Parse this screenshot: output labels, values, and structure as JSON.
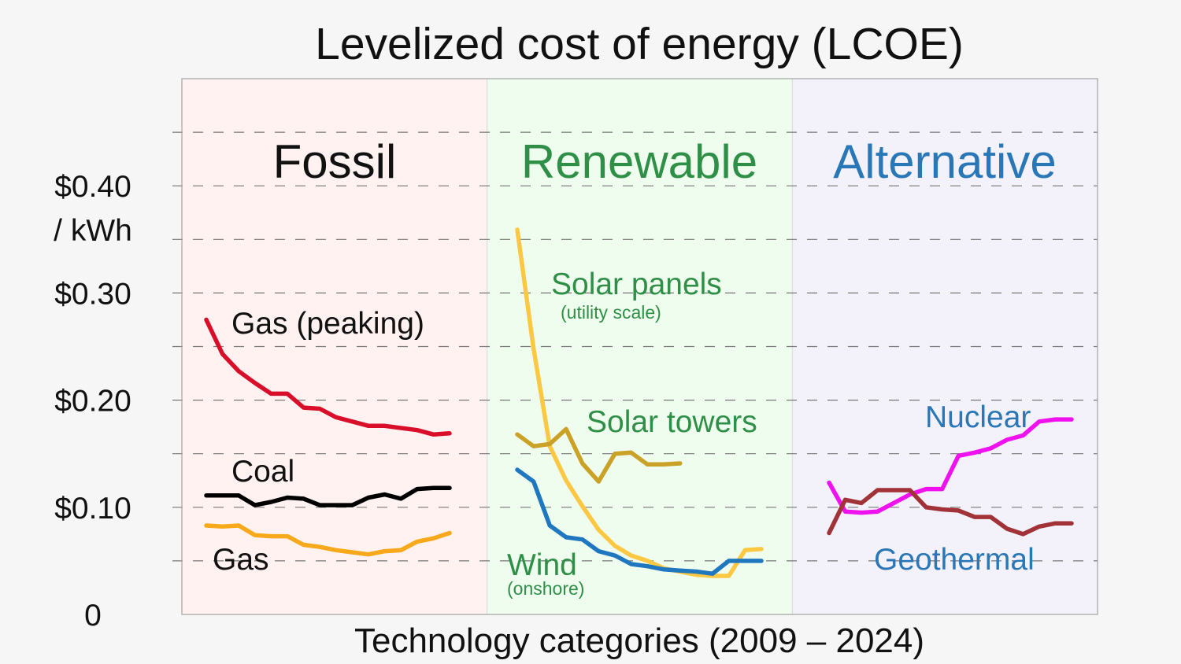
{
  "chart_data": {
    "type": "line",
    "title": "Levelized cost of energy (LCOE)",
    "xlabel": "Technology categories (2009 – 2024)",
    "ylabel": "$0.40 / kWh",
    "ylim": [
      0,
      0.5
    ],
    "y_ticks": [
      {
        "value": 0,
        "label": "0"
      },
      {
        "value": 0.1,
        "label": "$0.10"
      },
      {
        "value": 0.2,
        "label": "$0.20"
      },
      {
        "value": 0.3,
        "label": "$0.30"
      },
      {
        "value": 0.4,
        "label": "$0.40"
      }
    ],
    "y_unit_label": "/ kWh",
    "grid": true,
    "grid_values": [
      0.05,
      0.1,
      0.15,
      0.2,
      0.25,
      0.3,
      0.35,
      0.4,
      0.45
    ],
    "years": [
      2009,
      2010,
      2011,
      2012,
      2013,
      2014,
      2015,
      2016,
      2017,
      2018,
      2019,
      2020,
      2021,
      2022,
      2023,
      2024
    ],
    "categories": [
      {
        "name": "Fossil",
        "color": "#111111",
        "background": "#fff2f1",
        "series": [
          {
            "name": "Gas (peaking)",
            "color": "#d90f2a",
            "x": [
              2009,
              2010,
              2011,
              2012,
              2013,
              2014,
              2015,
              2016,
              2017,
              2018,
              2019,
              2020,
              2021,
              2022,
              2023,
              2024
            ],
            "y": [
              0.275,
              0.243,
              0.227,
              0.216,
              0.206,
              0.206,
              0.193,
              0.192,
              0.184,
              0.18,
              0.176,
              0.176,
              0.174,
              0.172,
              0.168,
              0.169
            ]
          },
          {
            "name": "Coal",
            "color": "#000000",
            "x": [
              2009,
              2010,
              2011,
              2012,
              2013,
              2014,
              2015,
              2016,
              2017,
              2018,
              2019,
              2020,
              2021,
              2022,
              2023,
              2024
            ],
            "y": [
              0.111,
              0.111,
              0.111,
              0.102,
              0.105,
              0.109,
              0.108,
              0.102,
              0.102,
              0.102,
              0.109,
              0.112,
              0.108,
              0.117,
              0.118,
              0.118
            ]
          },
          {
            "name": "Gas",
            "color": "#f7a81b",
            "x": [
              2009,
              2010,
              2011,
              2012,
              2013,
              2014,
              2015,
              2016,
              2017,
              2018,
              2019,
              2020,
              2021,
              2022,
              2023,
              2024
            ],
            "y": [
              0.083,
              0.082,
              0.083,
              0.074,
              0.073,
              0.073,
              0.065,
              0.063,
              0.06,
              0.058,
              0.056,
              0.059,
              0.06,
              0.068,
              0.071,
              0.076
            ]
          }
        ]
      },
      {
        "name": "Renewable",
        "color": "#2f8f47",
        "background": "#effdef",
        "series": [
          {
            "name": "Solar panels",
            "note": "(utility scale)",
            "color": "#fcc843",
            "x": [
              2009,
              2010,
              2011,
              2012,
              2013,
              2014,
              2015,
              2016,
              2017,
              2018,
              2019,
              2020,
              2021,
              2022,
              2023,
              2024
            ],
            "y": [
              0.359,
              0.248,
              0.157,
              0.125,
              0.101,
              0.079,
              0.064,
              0.055,
              0.05,
              0.043,
              0.04,
              0.037,
              0.036,
              0.036,
              0.06,
              0.061
            ]
          },
          {
            "name": "Solar towers",
            "color": "#c9a227",
            "x": [
              2009,
              2010,
              2011,
              2012,
              2013,
              2014,
              2015,
              2016,
              2017,
              2018,
              2019
            ],
            "y": [
              0.168,
              0.157,
              0.159,
              0.173,
              0.141,
              0.124,
              0.15,
              0.151,
              0.14,
              0.14,
              0.141
            ]
          },
          {
            "name": "Wind",
            "note": "(onshore)",
            "color": "#1f77c0",
            "x": [
              2009,
              2010,
              2011,
              2012,
              2013,
              2014,
              2015,
              2016,
              2017,
              2018,
              2019,
              2020,
              2021,
              2022,
              2023,
              2024
            ],
            "y": [
              0.135,
              0.124,
              0.083,
              0.072,
              0.07,
              0.059,
              0.055,
              0.047,
              0.045,
              0.042,
              0.041,
              0.04,
              0.038,
              0.05,
              0.05,
              0.05
            ]
          }
        ]
      },
      {
        "name": "Alternative",
        "color": "#2a77b8",
        "background": "#f3f2fa",
        "series": [
          {
            "name": "Nuclear",
            "color": "#f012ee",
            "x": [
              2009,
              2010,
              2011,
              2012,
              2013,
              2014,
              2015,
              2016,
              2017,
              2018,
              2019,
              2020,
              2021,
              2022,
              2023,
              2024
            ],
            "y": [
              0.123,
              0.096,
              0.095,
              0.096,
              0.104,
              0.112,
              0.117,
              0.117,
              0.148,
              0.151,
              0.155,
              0.163,
              0.167,
              0.18,
              0.182,
              0.182
            ]
          },
          {
            "name": "Geothermal",
            "color": "#a03238",
            "x": [
              2009,
              2010,
              2011,
              2012,
              2013,
              2014,
              2015,
              2016,
              2017,
              2018,
              2019,
              2020,
              2021,
              2022,
              2023,
              2024
            ],
            "y": [
              0.076,
              0.107,
              0.104,
              0.116,
              0.116,
              0.116,
              0.1,
              0.098,
              0.097,
              0.091,
              0.091,
              0.08,
              0.075,
              0.082,
              0.085,
              0.085
            ]
          }
        ]
      }
    ]
  }
}
